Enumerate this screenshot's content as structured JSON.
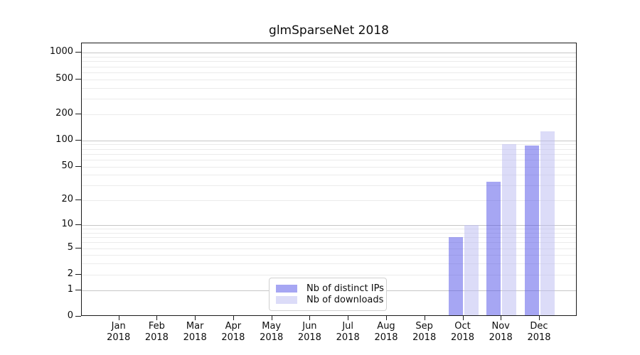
{
  "title": "glmSparseNet 2018",
  "chart_data": {
    "type": "bar",
    "title": "glmSparseNet 2018",
    "categories": [
      "Jan",
      "Feb",
      "Mar",
      "Apr",
      "May",
      "Jun",
      "Jul",
      "Aug",
      "Sep",
      "Oct",
      "Nov",
      "Dec"
    ],
    "year_label": "2018",
    "series": [
      {
        "name": "Nb of distinct IPs",
        "color": "rgba(77,77,232,0.5)",
        "rendered_color": "#a6a6f3",
        "values": [
          0,
          0,
          0,
          0,
          0,
          0,
          0,
          0,
          0,
          7,
          33,
          87
        ]
      },
      {
        "name": "Nb of downloads",
        "color": "rgba(185,185,241,0.5)",
        "rendered_color": "#dcdcf8",
        "values": [
          0,
          0,
          0,
          0,
          0,
          0,
          0,
          0,
          0,
          10,
          91,
          128
        ]
      }
    ],
    "xlabel": "",
    "ylabel": "",
    "y_axis": {
      "scale": "log10(1+y)",
      "tick_values": [
        0,
        1,
        2,
        5,
        10,
        20,
        50,
        100,
        200,
        500,
        1000
      ],
      "tick_labels": [
        "0",
        "1",
        "2",
        "5",
        "10",
        "20",
        "50",
        "100",
        "200",
        "500",
        "1000"
      ],
      "major_gridlines": [
        1,
        10,
        100,
        1000
      ],
      "minor_gridlines": [
        2,
        3,
        4,
        5,
        6,
        7,
        8,
        9,
        20,
        30,
        40,
        50,
        60,
        70,
        80,
        90,
        200,
        300,
        400,
        500,
        600,
        700,
        800,
        900
      ],
      "ylim": [
        0,
        1280
      ]
    },
    "legend_position": "lower center",
    "grid": "horizontal only"
  }
}
